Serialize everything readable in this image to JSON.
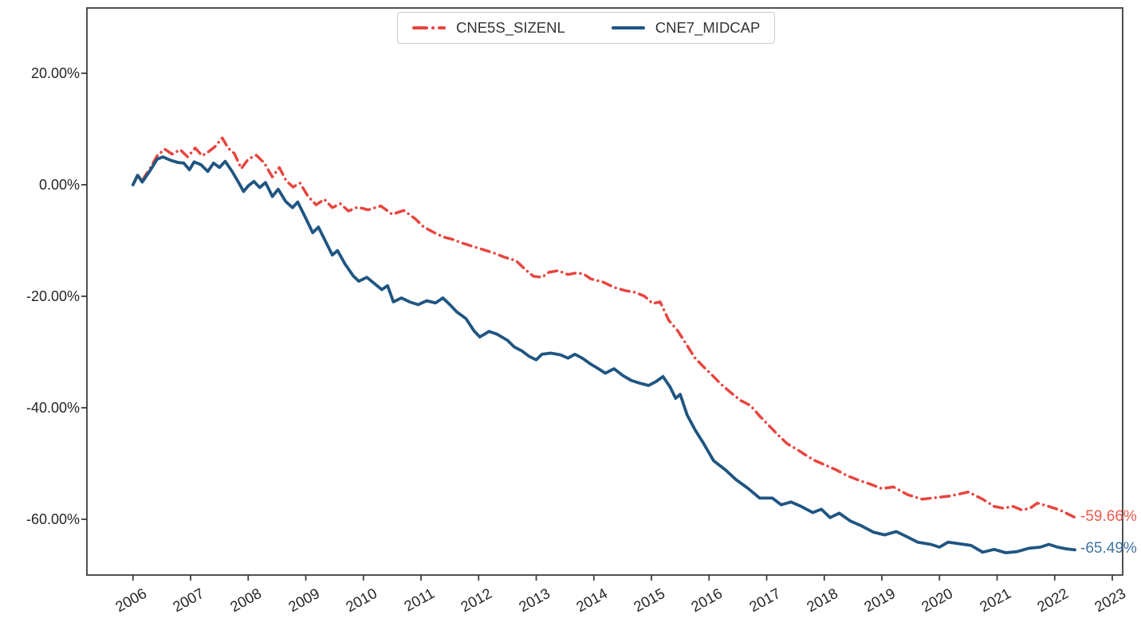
{
  "figure": {
    "background": "#ffffff",
    "spine_color": "#3d3d3d",
    "tick_label_color": "#262626"
  },
  "chart_data": {
    "type": "line",
    "title": "",
    "xlabel": "",
    "ylabel": "",
    "grid": false,
    "legend_position": "upper center",
    "xlim": [
      2005.2,
      2023.18
    ],
    "ylim": [
      -70,
      31.71
    ],
    "x_ticks": [
      {
        "label": "2006",
        "value": 2006
      },
      {
        "label": "2007",
        "value": 2007
      },
      {
        "label": "2008",
        "value": 2008
      },
      {
        "label": "2009",
        "value": 2009
      },
      {
        "label": "2010",
        "value": 2010
      },
      {
        "label": "2011",
        "value": 2011
      },
      {
        "label": "2012",
        "value": 2012
      },
      {
        "label": "2013",
        "value": 2013
      },
      {
        "label": "2014",
        "value": 2014
      },
      {
        "label": "2015",
        "value": 2015
      },
      {
        "label": "2016",
        "value": 2016
      },
      {
        "label": "2017",
        "value": 2017
      },
      {
        "label": "2018",
        "value": 2018
      },
      {
        "label": "2019",
        "value": 2019
      },
      {
        "label": "2020",
        "value": 2020
      },
      {
        "label": "2021",
        "value": 2021
      },
      {
        "label": "2022",
        "value": 2022
      },
      {
        "label": "2023",
        "value": 2023
      }
    ],
    "y_ticks": [
      {
        "label": "20.00%",
        "value": 20
      },
      {
        "label": "0.00%",
        "value": 0
      },
      {
        "label": "-20.00%",
        "value": -20
      },
      {
        "label": "-40.00%",
        "value": -40
      },
      {
        "label": "-60.00%",
        "value": -60
      }
    ],
    "series": [
      {
        "name": "CNE5S_SIZENL",
        "color": "#e8453f",
        "label_color": "#ea5a50",
        "style": "dashdot",
        "end_label": "-59.66%",
        "points": [
          [
            2006.0,
            0.0
          ],
          [
            2006.08,
            1.8
          ],
          [
            2006.16,
            0.8
          ],
          [
            2006.3,
            3.0
          ],
          [
            2006.42,
            5.2
          ],
          [
            2006.55,
            6.4
          ],
          [
            2006.68,
            5.5
          ],
          [
            2006.82,
            6.3
          ],
          [
            2006.95,
            5.0
          ],
          [
            2007.08,
            6.6
          ],
          [
            2007.2,
            5.2
          ],
          [
            2007.32,
            6.0
          ],
          [
            2007.42,
            6.8
          ],
          [
            2007.55,
            8.4
          ],
          [
            2007.65,
            6.6
          ],
          [
            2007.76,
            5.6
          ],
          [
            2007.88,
            2.9
          ],
          [
            2008.0,
            4.6
          ],
          [
            2008.14,
            5.3
          ],
          [
            2008.28,
            3.9
          ],
          [
            2008.42,
            1.4
          ],
          [
            2008.54,
            3.1
          ],
          [
            2008.66,
            0.7
          ],
          [
            2008.78,
            -0.4
          ],
          [
            2008.9,
            0.3
          ],
          [
            2009.04,
            -2.1
          ],
          [
            2009.18,
            -3.6
          ],
          [
            2009.32,
            -2.6
          ],
          [
            2009.46,
            -4.1
          ],
          [
            2009.6,
            -3.4
          ],
          [
            2009.74,
            -4.7
          ],
          [
            2009.9,
            -4.0
          ],
          [
            2010.08,
            -4.5
          ],
          [
            2010.3,
            -3.8
          ],
          [
            2010.5,
            -5.3
          ],
          [
            2010.7,
            -4.6
          ],
          [
            2010.9,
            -6.1
          ],
          [
            2011.05,
            -7.6
          ],
          [
            2011.25,
            -8.7
          ],
          [
            2011.4,
            -9.4
          ],
          [
            2011.55,
            -9.8
          ],
          [
            2011.7,
            -10.4
          ],
          [
            2011.88,
            -11.0
          ],
          [
            2012.1,
            -11.7
          ],
          [
            2012.28,
            -12.3
          ],
          [
            2012.45,
            -13.0
          ],
          [
            2012.65,
            -13.6
          ],
          [
            2012.82,
            -15.3
          ],
          [
            2012.95,
            -16.4
          ],
          [
            2013.1,
            -16.6
          ],
          [
            2013.22,
            -15.7
          ],
          [
            2013.38,
            -15.4
          ],
          [
            2013.55,
            -16.1
          ],
          [
            2013.7,
            -15.8
          ],
          [
            2013.82,
            -16.0
          ],
          [
            2013.95,
            -16.9
          ],
          [
            2014.15,
            -17.4
          ],
          [
            2014.35,
            -18.4
          ],
          [
            2014.55,
            -19.0
          ],
          [
            2014.72,
            -19.3
          ],
          [
            2014.88,
            -20.0
          ],
          [
            2015.02,
            -21.3
          ],
          [
            2015.15,
            -21.0
          ],
          [
            2015.3,
            -24.3
          ],
          [
            2015.45,
            -26.1
          ],
          [
            2015.6,
            -28.5
          ],
          [
            2015.75,
            -31.0
          ],
          [
            2015.9,
            -32.6
          ],
          [
            2016.05,
            -34.1
          ],
          [
            2016.2,
            -35.7
          ],
          [
            2016.38,
            -37.3
          ],
          [
            2016.55,
            -38.7
          ],
          [
            2016.72,
            -39.6
          ],
          [
            2016.88,
            -41.5
          ],
          [
            2017.04,
            -43.2
          ],
          [
            2017.2,
            -44.9
          ],
          [
            2017.35,
            -46.4
          ],
          [
            2017.5,
            -47.3
          ],
          [
            2017.65,
            -48.3
          ],
          [
            2017.82,
            -49.4
          ],
          [
            2018.0,
            -50.2
          ],
          [
            2018.2,
            -51.1
          ],
          [
            2018.4,
            -52.2
          ],
          [
            2018.6,
            -53.0
          ],
          [
            2018.8,
            -53.7
          ],
          [
            2019.0,
            -54.5
          ],
          [
            2019.2,
            -54.2
          ],
          [
            2019.45,
            -55.6
          ],
          [
            2019.7,
            -56.4
          ],
          [
            2019.95,
            -56.1
          ],
          [
            2020.2,
            -55.8
          ],
          [
            2020.5,
            -55.1
          ],
          [
            2020.75,
            -56.4
          ],
          [
            2020.95,
            -57.7
          ],
          [
            2021.1,
            -58.0
          ],
          [
            2021.28,
            -57.7
          ],
          [
            2021.42,
            -58.3
          ],
          [
            2021.56,
            -58.1
          ],
          [
            2021.7,
            -57.1
          ],
          [
            2021.9,
            -57.7
          ],
          [
            2022.08,
            -58.3
          ],
          [
            2022.22,
            -59.0
          ],
          [
            2022.35,
            -59.66
          ]
        ]
      },
      {
        "name": "CNE7_MIDCAP",
        "color": "#1f5582",
        "label_color": "#41729f",
        "style": "solid",
        "end_label": "-65.49%",
        "points": [
          [
            2006.0,
            0.0
          ],
          [
            2006.08,
            1.7
          ],
          [
            2006.16,
            0.5
          ],
          [
            2006.3,
            2.6
          ],
          [
            2006.42,
            4.6
          ],
          [
            2006.52,
            5.0
          ],
          [
            2006.65,
            4.4
          ],
          [
            2006.78,
            4.0
          ],
          [
            2006.88,
            3.9
          ],
          [
            2006.98,
            2.7
          ],
          [
            2007.06,
            4.1
          ],
          [
            2007.18,
            3.6
          ],
          [
            2007.3,
            2.4
          ],
          [
            2007.4,
            3.9
          ],
          [
            2007.5,
            3.1
          ],
          [
            2007.6,
            4.2
          ],
          [
            2007.72,
            2.4
          ],
          [
            2007.84,
            0.3
          ],
          [
            2007.92,
            -1.2
          ],
          [
            2008.0,
            -0.2
          ],
          [
            2008.1,
            0.6
          ],
          [
            2008.2,
            -0.5
          ],
          [
            2008.3,
            0.4
          ],
          [
            2008.42,
            -2.1
          ],
          [
            2008.52,
            -0.8
          ],
          [
            2008.65,
            -3.0
          ],
          [
            2008.77,
            -4.1
          ],
          [
            2008.86,
            -3.1
          ],
          [
            2009.0,
            -6.0
          ],
          [
            2009.12,
            -8.6
          ],
          [
            2009.22,
            -7.6
          ],
          [
            2009.36,
            -10.5
          ],
          [
            2009.46,
            -12.6
          ],
          [
            2009.55,
            -11.8
          ],
          [
            2009.68,
            -14.2
          ],
          [
            2009.82,
            -16.3
          ],
          [
            2009.92,
            -17.3
          ],
          [
            2010.06,
            -16.6
          ],
          [
            2010.2,
            -17.8
          ],
          [
            2010.32,
            -18.8
          ],
          [
            2010.42,
            -18.1
          ],
          [
            2010.52,
            -21.0
          ],
          [
            2010.66,
            -20.3
          ],
          [
            2010.8,
            -21.0
          ],
          [
            2010.95,
            -21.5
          ],
          [
            2011.1,
            -20.8
          ],
          [
            2011.25,
            -21.2
          ],
          [
            2011.38,
            -20.3
          ],
          [
            2011.5,
            -21.5
          ],
          [
            2011.62,
            -22.8
          ],
          [
            2011.78,
            -24.0
          ],
          [
            2011.92,
            -26.2
          ],
          [
            2012.02,
            -27.3
          ],
          [
            2012.18,
            -26.3
          ],
          [
            2012.32,
            -26.8
          ],
          [
            2012.5,
            -27.9
          ],
          [
            2012.62,
            -29.1
          ],
          [
            2012.75,
            -29.8
          ],
          [
            2012.88,
            -30.8
          ],
          [
            2013.0,
            -31.4
          ],
          [
            2013.1,
            -30.4
          ],
          [
            2013.25,
            -30.2
          ],
          [
            2013.42,
            -30.5
          ],
          [
            2013.55,
            -31.1
          ],
          [
            2013.67,
            -30.4
          ],
          [
            2013.8,
            -31.1
          ],
          [
            2013.95,
            -32.2
          ],
          [
            2014.08,
            -33.0
          ],
          [
            2014.2,
            -33.8
          ],
          [
            2014.35,
            -33.0
          ],
          [
            2014.5,
            -34.2
          ],
          [
            2014.65,
            -35.1
          ],
          [
            2014.8,
            -35.6
          ],
          [
            2014.95,
            -36.0
          ],
          [
            2015.08,
            -35.3
          ],
          [
            2015.2,
            -34.4
          ],
          [
            2015.32,
            -36.2
          ],
          [
            2015.42,
            -38.3
          ],
          [
            2015.5,
            -37.6
          ],
          [
            2015.62,
            -41.3
          ],
          [
            2015.76,
            -44.0
          ],
          [
            2015.9,
            -46.3
          ],
          [
            2016.08,
            -49.5
          ],
          [
            2016.28,
            -51.1
          ],
          [
            2016.47,
            -52.9
          ],
          [
            2016.67,
            -54.4
          ],
          [
            2016.88,
            -56.2
          ],
          [
            2017.1,
            -56.2
          ],
          [
            2017.25,
            -57.4
          ],
          [
            2017.42,
            -56.9
          ],
          [
            2017.6,
            -57.7
          ],
          [
            2017.8,
            -58.8
          ],
          [
            2017.95,
            -58.2
          ],
          [
            2018.1,
            -59.7
          ],
          [
            2018.26,
            -58.9
          ],
          [
            2018.45,
            -60.3
          ],
          [
            2018.65,
            -61.2
          ],
          [
            2018.85,
            -62.3
          ],
          [
            2019.05,
            -62.8
          ],
          [
            2019.25,
            -62.2
          ],
          [
            2019.45,
            -63.2
          ],
          [
            2019.62,
            -64.1
          ],
          [
            2019.85,
            -64.5
          ],
          [
            2020.0,
            -65.0
          ],
          [
            2020.15,
            -64.1
          ],
          [
            2020.35,
            -64.4
          ],
          [
            2020.55,
            -64.7
          ],
          [
            2020.75,
            -65.9
          ],
          [
            2020.95,
            -65.4
          ],
          [
            2021.15,
            -66.0
          ],
          [
            2021.35,
            -65.8
          ],
          [
            2021.55,
            -65.2
          ],
          [
            2021.75,
            -65.0
          ],
          [
            2021.9,
            -64.5
          ],
          [
            2022.05,
            -65.0
          ],
          [
            2022.2,
            -65.3
          ],
          [
            2022.35,
            -65.49
          ]
        ]
      }
    ]
  }
}
